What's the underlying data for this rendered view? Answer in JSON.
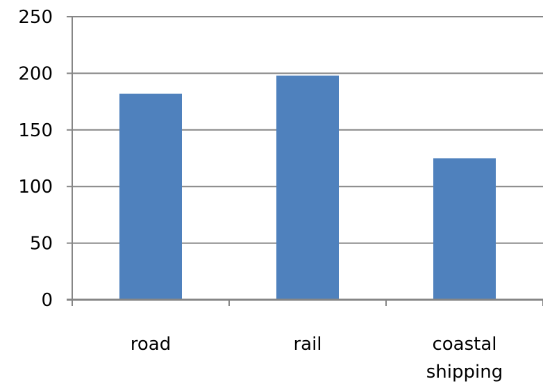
{
  "chart_data": {
    "type": "bar",
    "categories": [
      [
        "road"
      ],
      [
        "rail"
      ],
      [
        "coastal",
        "shipping"
      ]
    ],
    "values": [
      182,
      198,
      125
    ],
    "ylim": [
      0,
      250
    ],
    "y_ticks": [
      "0",
      "50",
      "100",
      "150",
      "200",
      "250"
    ],
    "grid": true,
    "colors": {
      "bar": "#4f81bd",
      "grid": "#868686",
      "axis": "#868686",
      "text": "#000000"
    }
  }
}
